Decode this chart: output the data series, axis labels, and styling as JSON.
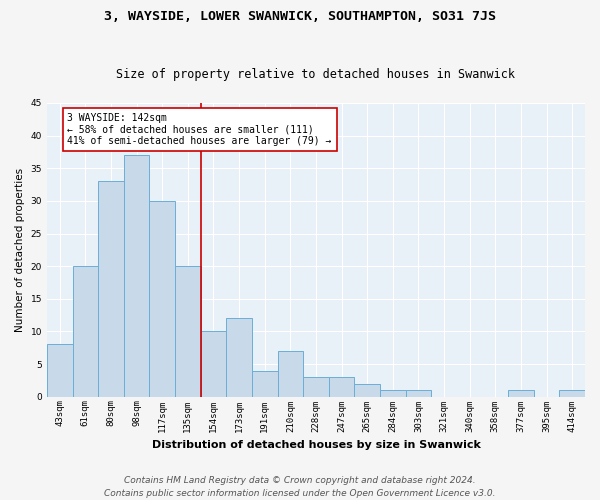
{
  "title": "3, WAYSIDE, LOWER SWANWICK, SOUTHAMPTON, SO31 7JS",
  "subtitle": "Size of property relative to detached houses in Swanwick",
  "xlabel": "Distribution of detached houses by size in Swanwick",
  "ylabel": "Number of detached properties",
  "bar_color": "#c8daea",
  "bar_edge_color": "#6aaed6",
  "background_color": "#e8f0f8",
  "fig_background": "#f5f5f5",
  "categories": [
    "43sqm",
    "61sqm",
    "80sqm",
    "98sqm",
    "117sqm",
    "135sqm",
    "154sqm",
    "173sqm",
    "191sqm",
    "210sqm",
    "228sqm",
    "247sqm",
    "265sqm",
    "284sqm",
    "303sqm",
    "321sqm",
    "340sqm",
    "358sqm",
    "377sqm",
    "395sqm",
    "414sqm"
  ],
  "values": [
    8,
    20,
    33,
    37,
    30,
    20,
    10,
    12,
    4,
    7,
    3,
    3,
    2,
    1,
    1,
    0,
    0,
    0,
    1,
    0,
    1
  ],
  "vline_x": 5.5,
  "vline_color": "#cc0000",
  "annotation_line1": "3 WAYSIDE: 142sqm",
  "annotation_line2": "← 58% of detached houses are smaller (111)",
  "annotation_line3": "41% of semi-detached houses are larger (79) →",
  "annotation_box_color": "#ffffff",
  "annotation_box_edge": "#cc0000",
  "ylim": [
    0,
    45
  ],
  "yticks": [
    0,
    5,
    10,
    15,
    20,
    25,
    30,
    35,
    40,
    45
  ],
  "footer_line1": "Contains HM Land Registry data © Crown copyright and database right 2024.",
  "footer_line2": "Contains public sector information licensed under the Open Government Licence v3.0.",
  "grid_color": "#ffffff",
  "title_fontsize": 9.5,
  "subtitle_fontsize": 8.5,
  "xlabel_fontsize": 8,
  "ylabel_fontsize": 7.5,
  "tick_fontsize": 6.5,
  "annotation_fontsize": 7,
  "footer_fontsize": 6.5
}
